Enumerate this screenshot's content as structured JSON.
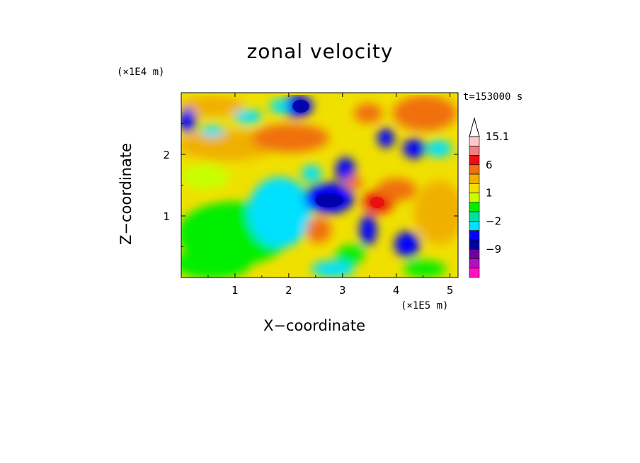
{
  "chart_data": {
    "type": "heatmap",
    "title": "zonal velocity",
    "xlabel": "X−coordinate",
    "ylabel": "Z−coordinate",
    "x_unit": "(×1E5 m)",
    "y_unit": "(×1E4 m)",
    "time_label": "t=153000 s",
    "xlim": [
      0,
      5.15
    ],
    "ylim": [
      0,
      3.0
    ],
    "xticks": [
      "1",
      "2",
      "3",
      "4",
      "5"
    ],
    "yticks": [
      "1",
      "2"
    ],
    "colorbar": {
      "labels": [
        "15.1",
        "6",
        "1",
        "−2",
        "−9"
      ],
      "levels_top_to_bottom": [
        15.1,
        12,
        9,
        6,
        4,
        2,
        1,
        0,
        -1,
        -2,
        -4,
        -6,
        -9,
        -12,
        -15
      ],
      "colors_top_to_bottom": [
        "#ffc8c8",
        "#f08080",
        "#e81010",
        "#f07010",
        "#f0b000",
        "#f0e000",
        "#c8ff00",
        "#00ee00",
        "#00e0a0",
        "#00e0ff",
        "#0000ff",
        "#0000a0",
        "#7000a0",
        "#b010c0",
        "#ff10c0"
      ]
    }
  }
}
